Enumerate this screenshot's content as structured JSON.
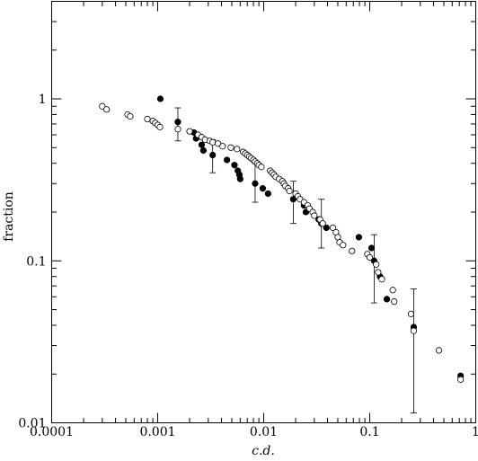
{
  "chart_data": {
    "type": "scatter",
    "xlabel": "c.d.",
    "ylabel": "fraction",
    "xscale": "log",
    "yscale": "log",
    "xlim": [
      0.0001,
      1
    ],
    "ylim": [
      0.01,
      4
    ],
    "x_tick_labels": [
      {
        "value": 0.0001,
        "label": "0.0001"
      },
      {
        "value": 0.001,
        "label": "0.001"
      },
      {
        "value": 0.01,
        "label": "0.01"
      },
      {
        "value": 0.1,
        "label": "0.1"
      },
      {
        "value": 1,
        "label": "1"
      }
    ],
    "y_tick_labels": [
      {
        "value": 0.01,
        "label": "0.01"
      },
      {
        "value": 0.1,
        "label": "0.1"
      },
      {
        "value": 1,
        "label": "1"
      }
    ],
    "grid": false,
    "legend": "none",
    "series": [
      {
        "marker": "filled-circle",
        "points": [
          [
            0.00106,
            1.0
          ],
          [
            0.00155,
            0.72
          ],
          [
            0.0022,
            0.62
          ],
          [
            0.0023,
            0.57
          ],
          [
            0.0026,
            0.52
          ],
          [
            0.0027,
            0.48
          ],
          [
            0.0033,
            0.45
          ],
          [
            0.0045,
            0.42
          ],
          [
            0.0053,
            0.39
          ],
          [
            0.0057,
            0.36
          ],
          [
            0.0059,
            0.34
          ],
          [
            0.006,
            0.32
          ],
          [
            0.0083,
            0.3
          ],
          [
            0.0098,
            0.28
          ],
          [
            0.011,
            0.26
          ],
          [
            0.019,
            0.24
          ],
          [
            0.024,
            0.22
          ],
          [
            0.025,
            0.2
          ],
          [
            0.033,
            0.18
          ],
          [
            0.035,
            0.17
          ],
          [
            0.039,
            0.16
          ],
          [
            0.079,
            0.14
          ],
          [
            0.104,
            0.12
          ],
          [
            0.11,
            0.1
          ],
          [
            0.125,
            0.08
          ],
          [
            0.145,
            0.058
          ],
          [
            0.26,
            0.039
          ],
          [
            0.72,
            0.0195
          ]
        ]
      },
      {
        "marker": "open-circle",
        "points": [
          [
            0.0003,
            0.9
          ],
          [
            0.00033,
            0.86
          ],
          [
            0.00052,
            0.8
          ],
          [
            0.00055,
            0.78
          ],
          [
            0.0008,
            0.75
          ],
          [
            0.0009,
            0.73
          ],
          [
            0.00095,
            0.71
          ],
          [
            0.001,
            0.69
          ],
          [
            0.00105,
            0.67
          ],
          [
            0.00155,
            0.65
          ],
          [
            0.002,
            0.63
          ],
          [
            0.0024,
            0.6
          ],
          [
            0.0026,
            0.58
          ],
          [
            0.0028,
            0.56
          ],
          [
            0.0031,
            0.55
          ],
          [
            0.0033,
            0.54
          ],
          [
            0.0037,
            0.53
          ],
          [
            0.0041,
            0.51
          ],
          [
            0.0049,
            0.5
          ],
          [
            0.0056,
            0.49
          ],
          [
            0.0064,
            0.47
          ],
          [
            0.0067,
            0.46
          ],
          [
            0.007,
            0.45
          ],
          [
            0.0073,
            0.44
          ],
          [
            0.0076,
            0.43
          ],
          [
            0.008,
            0.42
          ],
          [
            0.0083,
            0.41
          ],
          [
            0.0087,
            0.4
          ],
          [
            0.009,
            0.39
          ],
          [
            0.0095,
            0.38
          ],
          [
            0.0115,
            0.36
          ],
          [
            0.012,
            0.35
          ],
          [
            0.0125,
            0.34
          ],
          [
            0.013,
            0.33
          ],
          [
            0.014,
            0.32
          ],
          [
            0.015,
            0.31
          ],
          [
            0.0155,
            0.3
          ],
          [
            0.016,
            0.29
          ],
          [
            0.017,
            0.28
          ],
          [
            0.0175,
            0.27
          ],
          [
            0.02,
            0.26
          ],
          [
            0.021,
            0.25
          ],
          [
            0.022,
            0.24
          ],
          [
            0.024,
            0.23
          ],
          [
            0.026,
            0.22
          ],
          [
            0.027,
            0.21
          ],
          [
            0.029,
            0.2
          ],
          [
            0.03,
            0.19
          ],
          [
            0.034,
            0.18
          ],
          [
            0.036,
            0.17
          ],
          [
            0.045,
            0.16
          ],
          [
            0.048,
            0.15
          ],
          [
            0.05,
            0.14
          ],
          [
            0.052,
            0.13
          ],
          [
            0.056,
            0.125
          ],
          [
            0.068,
            0.115
          ],
          [
            0.095,
            0.11
          ],
          [
            0.1,
            0.105
          ],
          [
            0.115,
            0.095
          ],
          [
            0.12,
            0.085
          ],
          [
            0.13,
            0.077
          ],
          [
            0.165,
            0.066
          ],
          [
            0.17,
            0.056
          ],
          [
            0.245,
            0.047
          ],
          [
            0.26,
            0.037
          ],
          [
            0.45,
            0.028
          ],
          [
            0.72,
            0.0185
          ]
        ]
      }
    ],
    "error_bars": [
      {
        "x": 0.00155,
        "low": 0.55,
        "high": 0.88
      },
      {
        "x": 0.0033,
        "low": 0.35,
        "high": 0.56
      },
      {
        "x": 0.0083,
        "low": 0.23,
        "high": 0.4
      },
      {
        "x": 0.019,
        "low": 0.17,
        "high": 0.31
      },
      {
        "x": 0.035,
        "low": 0.12,
        "high": 0.24
      },
      {
        "x": 0.11,
        "low": 0.055,
        "high": 0.145
      },
      {
        "x": 0.26,
        "low": 0.0115,
        "high": 0.067
      }
    ]
  }
}
